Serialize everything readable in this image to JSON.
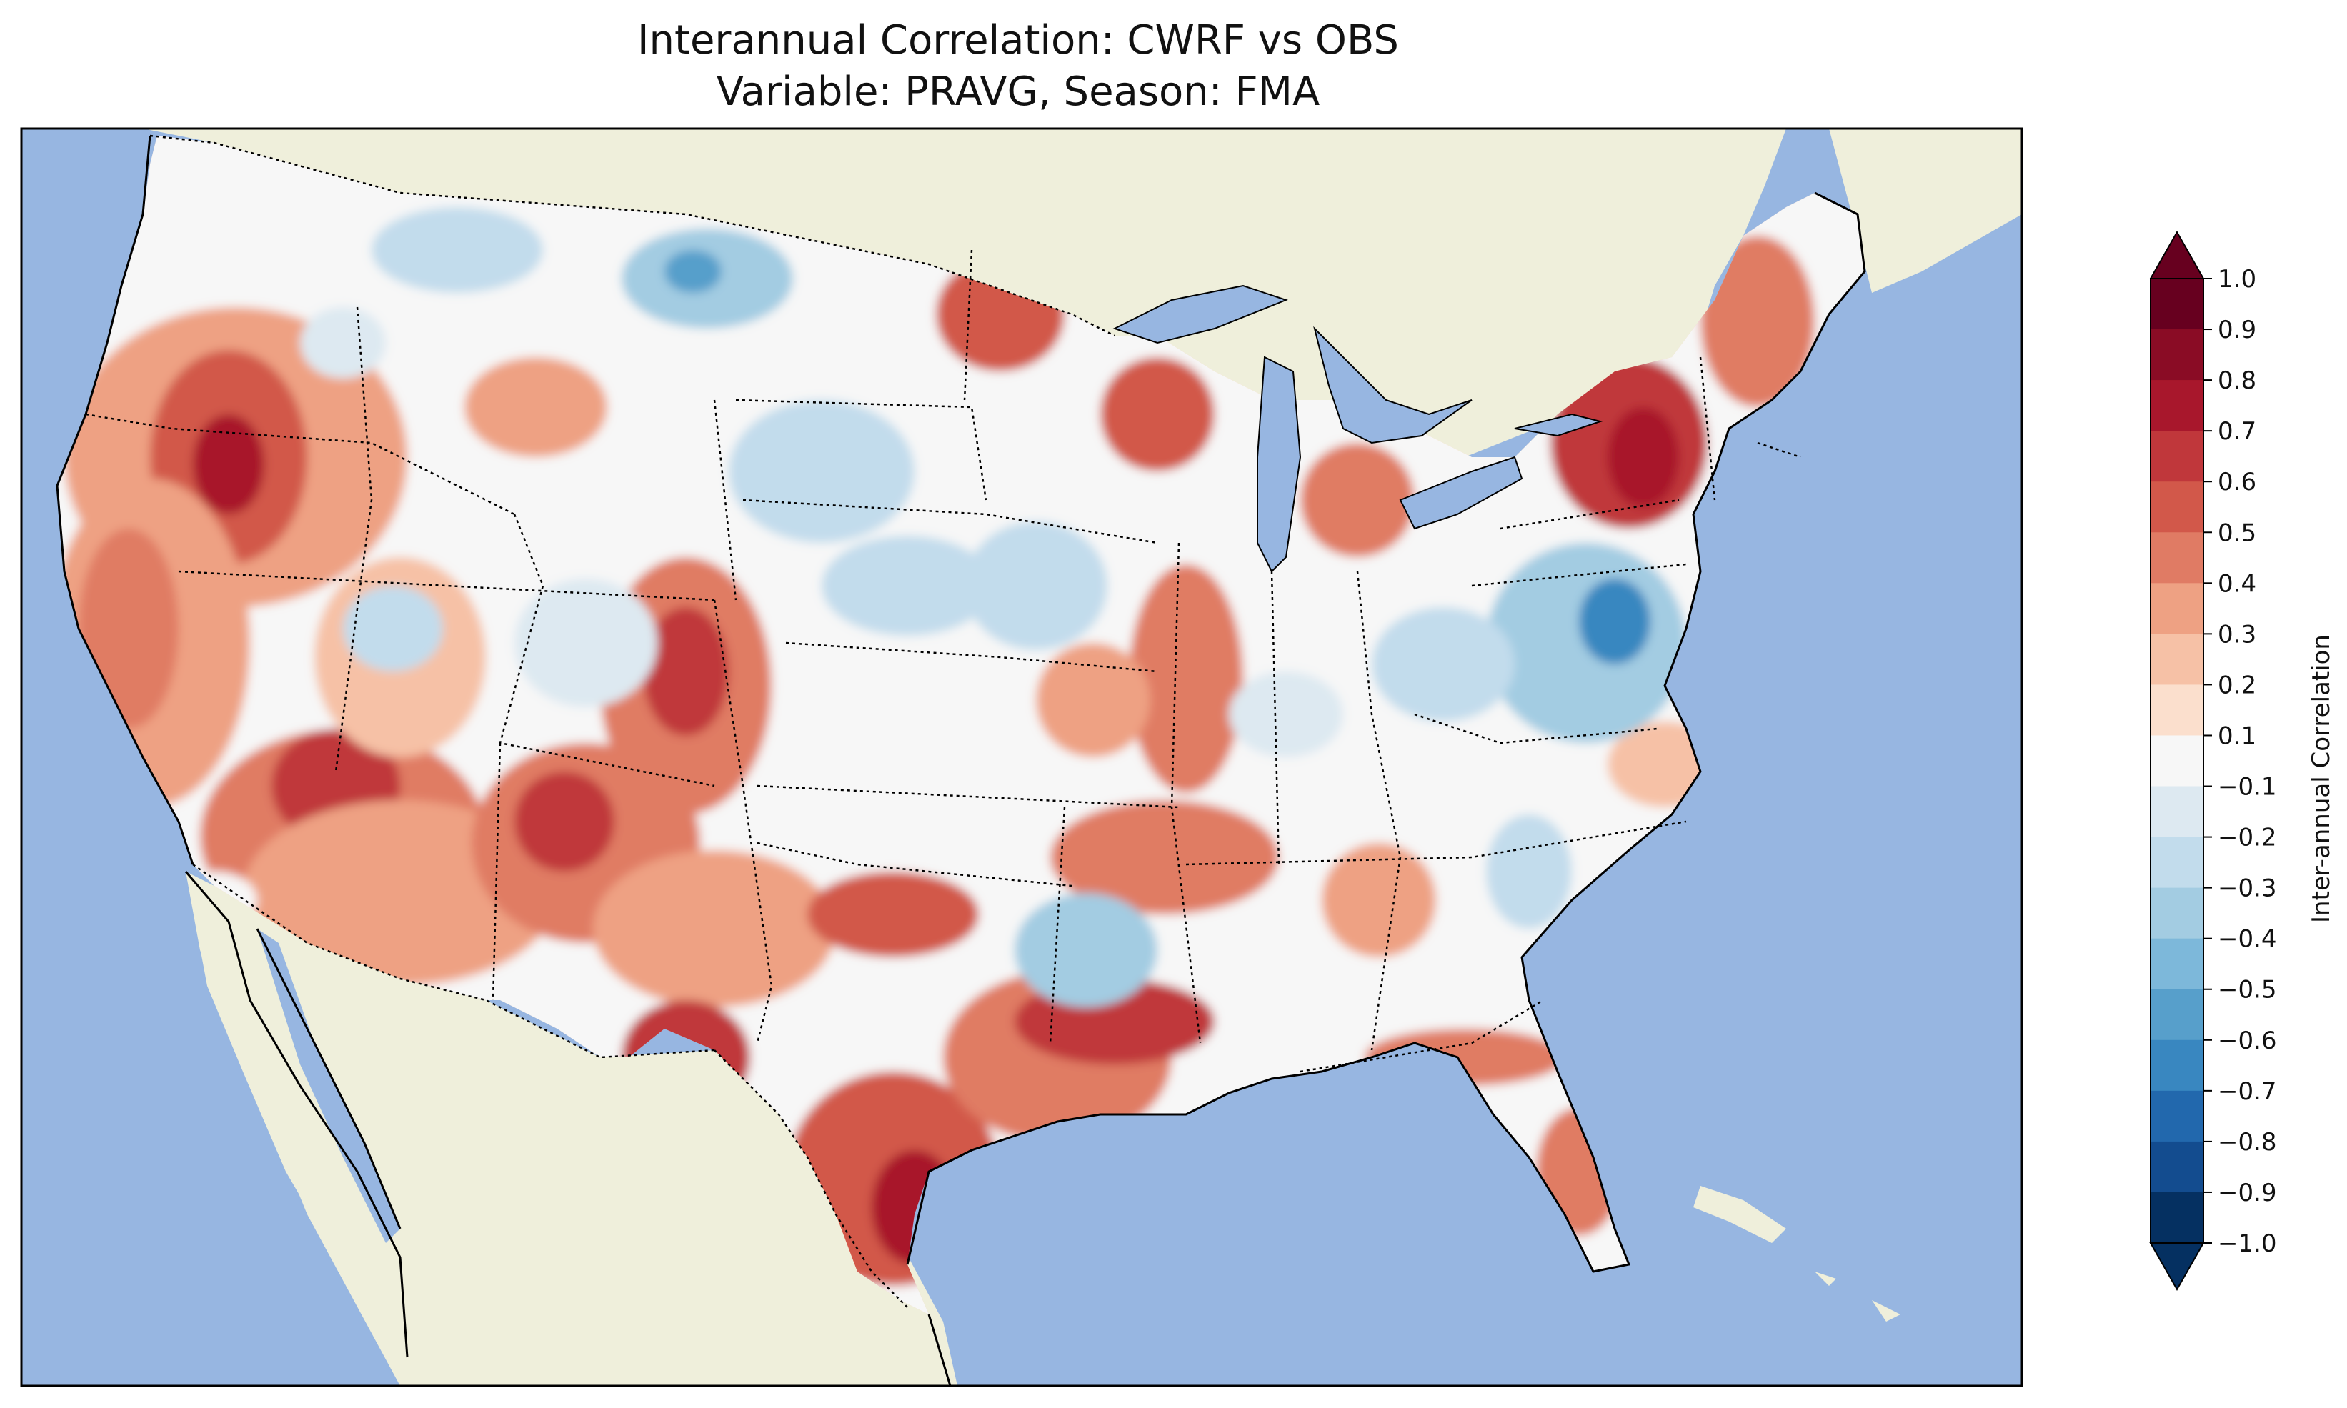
{
  "title": {
    "line1": "Interannual Correlation: CWRF vs OBS",
    "line2": "Variable: PRAVG, Season: FMA"
  },
  "colorbar": {
    "label": "Inter-annual Correlation",
    "ticks": [
      "1.0",
      "0.9",
      "0.8",
      "0.7",
      "0.6",
      "0.5",
      "0.4",
      "0.3",
      "0.2",
      "0.1",
      "−0.1",
      "−0.2",
      "−0.3",
      "−0.4",
      "−0.5",
      "−0.6",
      "−0.7",
      "−0.8",
      "−0.9",
      "−1.0"
    ],
    "extend": "both",
    "colors": [
      "#67001f",
      "#8a0c25",
      "#a8172c",
      "#c0373b",
      "#d2584a",
      "#e07b64",
      "#eea183",
      "#f6c1a6",
      "#fbdfcd",
      "#f7f7f7",
      "#dde9f1",
      "#c2dcec",
      "#a3cce2",
      "#7db8da",
      "#579fcb",
      "#3987c0",
      "#2268ad",
      "#134c8f",
      "#053061"
    ]
  },
  "map": {
    "ocean_color": "#97b6e1",
    "land_color": "#efefdb",
    "field_range": [
      -1.0,
      1.0
    ],
    "field_note_positive": "red = positive correlation",
    "field_note_negative": "blue = negative correlation"
  }
}
